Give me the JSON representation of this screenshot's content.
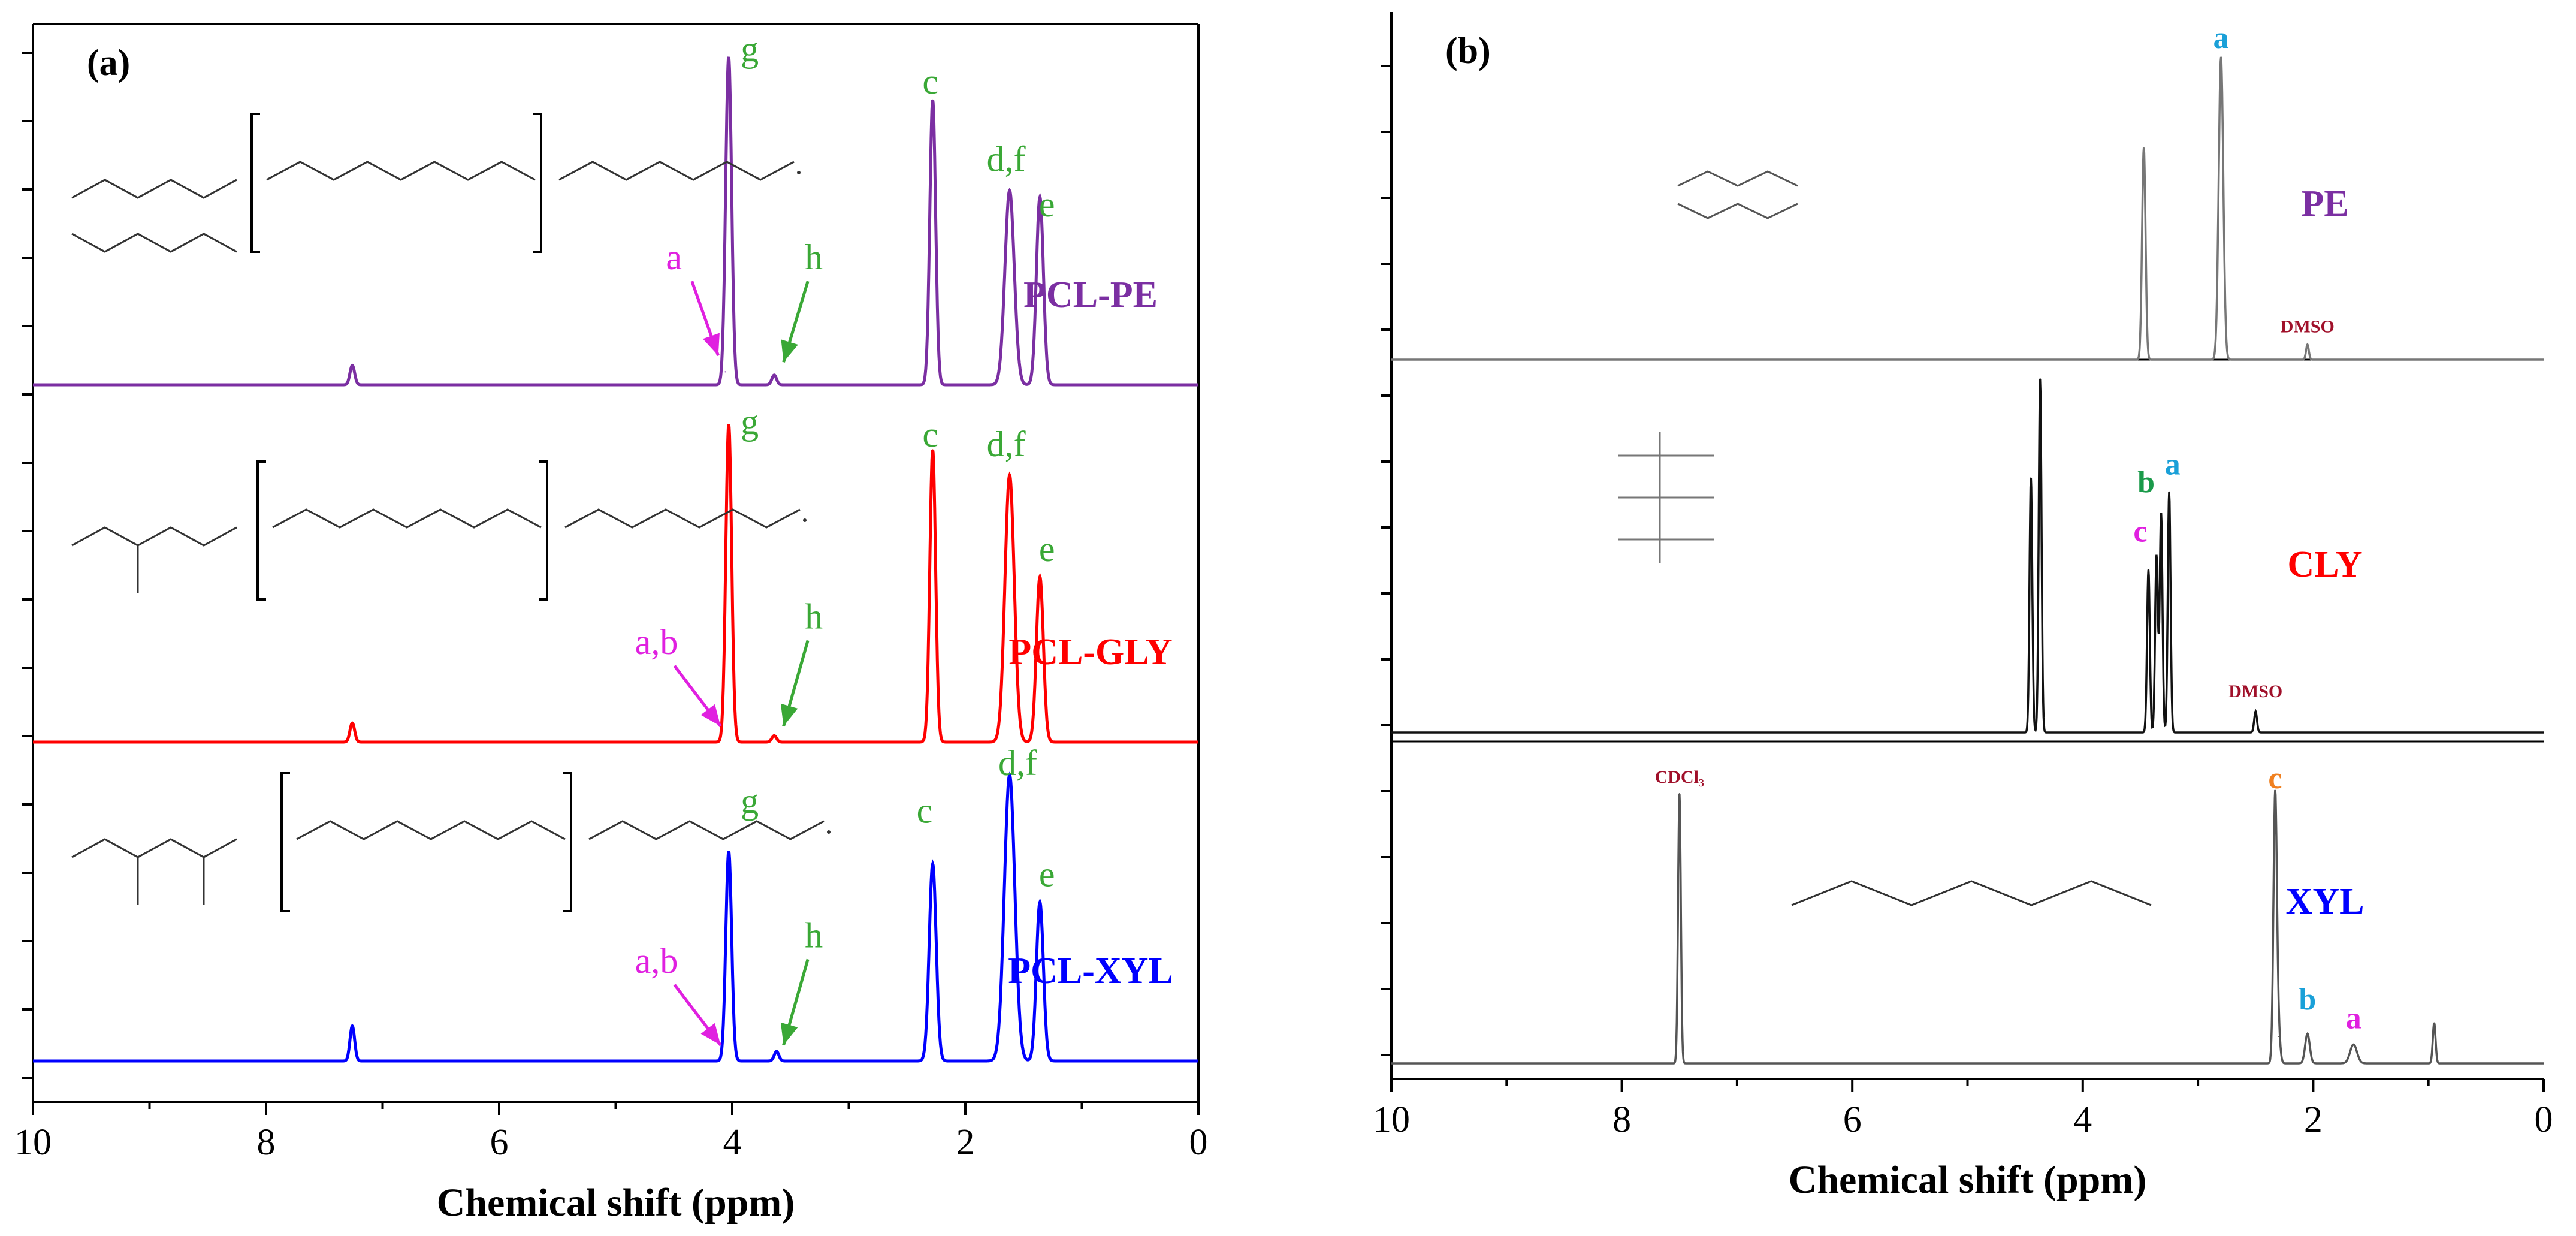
{
  "chart_data": [
    {
      "type": "line",
      "panel_label": "(a)",
      "xlabel": "Chemical shift (ppm)",
      "ylabel": "",
      "xlim": [
        10,
        0
      ],
      "x_ticks": [
        "10",
        "8",
        "6",
        "4",
        "2",
        "0"
      ],
      "series": [
        {
          "name": "PCL-PE",
          "color": "#7b2fa2",
          "peaks": [
            {
              "x": 7.26,
              "h": 0.06,
              "w": 0.02
            },
            {
              "x": 4.06,
              "h": 0.04,
              "w": 0.02
            },
            {
              "x": 4.03,
              "h": 1.0,
              "w": 0.025
            },
            {
              "x": 3.64,
              "h": 0.03,
              "w": 0.02
            },
            {
              "x": 2.28,
              "h": 0.88,
              "w": 0.025
            },
            {
              "x": 1.62,
              "h": 0.6,
              "w": 0.04
            },
            {
              "x": 1.36,
              "h": 0.58,
              "w": 0.03
            }
          ],
          "labels": [
            {
              "text": "g",
              "x": 3.85,
              "y": 1.0
            },
            {
              "text": "c",
              "x": 2.3,
              "y": 0.9
            },
            {
              "text": "d,f",
              "x": 1.65,
              "y": 0.66
            },
            {
              "text": "e",
              "x": 1.3,
              "y": 0.52
            }
          ],
          "arrows": [
            {
              "text": "a",
              "tx": 4.5,
              "ty": 0.32,
              "px": 4.12,
              "py": 0.09,
              "color": "#e020e0"
            },
            {
              "text": "h",
              "tx": 3.3,
              "ty": 0.32,
              "px": 3.56,
              "py": 0.07,
              "color": "#3aa836"
            }
          ],
          "structure": "PE"
        },
        {
          "name": "PCL-GLY",
          "color": "#ff0000",
          "peaks": [
            {
              "x": 7.26,
              "h": 0.06,
              "w": 0.02
            },
            {
              "x": 4.03,
              "h": 1.0,
              "w": 0.025
            },
            {
              "x": 3.64,
              "h": 0.02,
              "w": 0.02
            },
            {
              "x": 2.28,
              "h": 0.92,
              "w": 0.025
            },
            {
              "x": 1.62,
              "h": 0.84,
              "w": 0.04
            },
            {
              "x": 1.36,
              "h": 0.52,
              "w": 0.03
            }
          ],
          "labels": [
            {
              "text": "g",
              "x": 3.85,
              "y": 0.97
            },
            {
              "text": "c",
              "x": 2.3,
              "y": 0.93
            },
            {
              "text": "d,f",
              "x": 1.65,
              "y": 0.9
            },
            {
              "text": "e",
              "x": 1.3,
              "y": 0.57
            }
          ],
          "arrows": [
            {
              "text": "a,b",
              "tx": 4.65,
              "ty": 0.24,
              "px": 4.1,
              "py": 0.05,
              "color": "#e020e0"
            },
            {
              "text": "h",
              "tx": 3.3,
              "ty": 0.32,
              "px": 3.56,
              "py": 0.05,
              "color": "#3aa836"
            }
          ],
          "structure": "GLY"
        },
        {
          "name": "PCL-XYL",
          "color": "#0000ff",
          "peaks": [
            {
              "x": 7.26,
              "h": 0.11,
              "w": 0.02
            },
            {
              "x": 4.03,
              "h": 0.66,
              "w": 0.025
            },
            {
              "x": 3.62,
              "h": 0.03,
              "w": 0.02
            },
            {
              "x": 2.28,
              "h": 0.62,
              "w": 0.03
            },
            {
              "x": 1.62,
              "h": 0.9,
              "w": 0.045
            },
            {
              "x": 1.36,
              "h": 0.5,
              "w": 0.03
            }
          ],
          "labels": [
            {
              "text": "g",
              "x": 3.85,
              "y": 0.78
            },
            {
              "text": "c",
              "x": 2.35,
              "y": 0.75
            },
            {
              "text": "d,f",
              "x": 1.55,
              "y": 0.9
            },
            {
              "text": "e",
              "x": 1.3,
              "y": 0.55
            }
          ],
          "arrows": [
            {
              "text": "a,b",
              "tx": 4.65,
              "ty": 0.24,
              "px": 4.1,
              "py": 0.05,
              "color": "#e020e0"
            },
            {
              "text": "h",
              "tx": 3.3,
              "ty": 0.32,
              "px": 3.56,
              "py": 0.05,
              "color": "#3aa836"
            }
          ],
          "structure": "XYL"
        }
      ]
    },
    {
      "type": "line",
      "panel_label": "(b)",
      "xlabel": "Chemical shift (ppm)",
      "ylabel": "",
      "xlim": [
        10,
        0
      ],
      "x_ticks": [
        "10",
        "8",
        "6",
        "4",
        "2",
        "0"
      ],
      "series": [
        {
          "name": "PE",
          "color": "#7b2fa2",
          "line_color": "#777777",
          "peaks": [
            {
              "x": 3.47,
              "h": 0.7,
              "w": 0.015
            },
            {
              "x": 2.8,
              "h": 1.0,
              "w": 0.02
            },
            {
              "x": 2.05,
              "h": 0.05,
              "w": 0.012
            }
          ],
          "annotations": [
            {
              "text": "a",
              "x": 2.8,
              "y": 1.03,
              "color": "#1aa0d8"
            },
            {
              "text": "DMSO",
              "x": 2.05,
              "y": 0.09,
              "color": "#a0102a",
              "small": true
            }
          ],
          "structure": "PE"
        },
        {
          "name": "CLY",
          "color": "#ff0000",
          "line_color": "#111111",
          "peaks": [
            {
              "x": 4.45,
              "h": 0.72,
              "w": 0.012
            },
            {
              "x": 4.37,
              "h": 1.0,
              "w": 0.012
            },
            {
              "x": 3.43,
              "h": 0.46,
              "w": 0.012
            },
            {
              "x": 3.36,
              "h": 0.5,
              "w": 0.012
            },
            {
              "x": 3.32,
              "h": 0.62,
              "w": 0.012
            },
            {
              "x": 3.25,
              "h": 0.68,
              "w": 0.012
            },
            {
              "x": 2.5,
              "h": 0.06,
              "w": 0.012
            }
          ],
          "annotations": [
            {
              "text": "c",
              "x": 3.5,
              "y": 0.54,
              "color": "#e020e0"
            },
            {
              "text": "b",
              "x": 3.45,
              "y": 0.68,
              "color": "#1a9a4a"
            },
            {
              "text": "a",
              "x": 3.22,
              "y": 0.73,
              "color": "#1aa0d8"
            },
            {
              "text": "DMSO",
              "x": 2.5,
              "y": 0.1,
              "color": "#a0102a",
              "small": true
            }
          ],
          "structure": "CLY"
        },
        {
          "name": "XYL",
          "color": "#0000ff",
          "line_color": "#555555",
          "peaks": [
            {
              "x": 7.5,
              "h": 1.0,
              "w": 0.012
            },
            {
              "x": 2.33,
              "h": 1.0,
              "w": 0.015
            },
            {
              "x": 2.3,
              "h": 0.1,
              "w": 0.015
            },
            {
              "x": 2.05,
              "h": 0.11,
              "w": 0.02
            },
            {
              "x": 1.65,
              "h": 0.07,
              "w": 0.03
            },
            {
              "x": 0.95,
              "h": 0.15,
              "w": 0.012
            }
          ],
          "annotations": [
            {
              "text": "CDCl₃",
              "x": 7.5,
              "y": 1.04,
              "color": "#a0102a",
              "small": true
            },
            {
              "text": "c",
              "x": 2.33,
              "y": 1.02,
              "color": "#f08020"
            },
            {
              "text": "b",
              "x": 2.05,
              "y": 0.2,
              "color": "#1aa0d8"
            },
            {
              "text": "a",
              "x": 1.65,
              "y": 0.13,
              "color": "#e020e0"
            }
          ],
          "structure": "XYL"
        }
      ]
    }
  ]
}
